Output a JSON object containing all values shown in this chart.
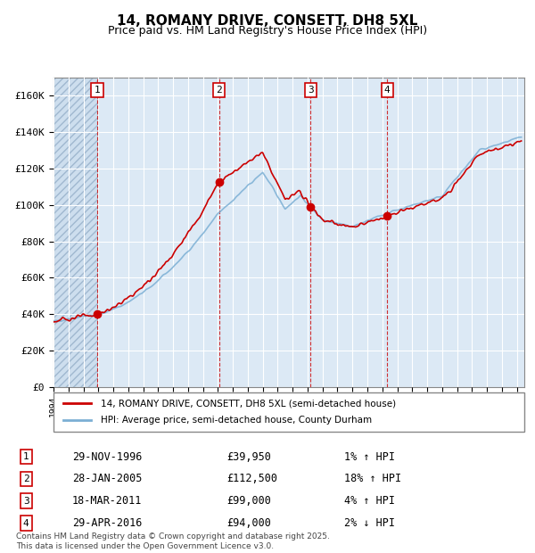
{
  "title": "14, ROMANY DRIVE, CONSETT, DH8 5XL",
  "subtitle": "Price paid vs. HM Land Registry's House Price Index (HPI)",
  "background_color": "#dce9f5",
  "plot_bg_color": "#dce9f5",
  "hatch_color": "#b0c8e0",
  "grid_color": "#ffffff",
  "red_line_color": "#cc0000",
  "blue_line_color": "#7bafd4",
  "sale_marker_color": "#cc0000",
  "vline_color": "#cc0000",
  "ylim": [
    0,
    170000
  ],
  "yticks": [
    0,
    20000,
    40000,
    60000,
    80000,
    100000,
    120000,
    140000,
    160000
  ],
  "ytick_labels": [
    "£0",
    "£20K",
    "£40K",
    "£60K",
    "£80K",
    "£100K",
    "£120K",
    "£140K",
    "£160K"
  ],
  "xlim_start": 1994.0,
  "xlim_end": 2025.5,
  "xticks": [
    1994,
    1995,
    1996,
    1997,
    1998,
    1999,
    2000,
    2001,
    2002,
    2003,
    2004,
    2005,
    2006,
    2007,
    2008,
    2009,
    2010,
    2011,
    2012,
    2013,
    2014,
    2015,
    2016,
    2017,
    2018,
    2019,
    2020,
    2021,
    2022,
    2023,
    2024,
    2025
  ],
  "sales": [
    {
      "num": 1,
      "date_x": 1996.92,
      "price": 39950,
      "label": "29-NOV-1996",
      "price_str": "£39,950",
      "hpi_rel": "1% ↑ HPI"
    },
    {
      "num": 2,
      "date_x": 2005.08,
      "price": 112500,
      "label": "28-JAN-2005",
      "price_str": "£112,500",
      "hpi_rel": "18% ↑ HPI"
    },
    {
      "num": 3,
      "date_x": 2011.21,
      "price": 99000,
      "label": "18-MAR-2011",
      "price_str": "£99,000",
      "hpi_rel": "4% ↑ HPI"
    },
    {
      "num": 4,
      "date_x": 2016.33,
      "price": 94000,
      "label": "29-APR-2016",
      "price_str": "£94,000",
      "hpi_rel": "2% ↓ HPI"
    }
  ],
  "legend_line1": "14, ROMANY DRIVE, CONSETT, DH8 5XL (semi-detached house)",
  "legend_line2": "HPI: Average price, semi-detached house, County Durham",
  "footer": "Contains HM Land Registry data © Crown copyright and database right 2025.\nThis data is licensed under the Open Government Licence v3.0."
}
